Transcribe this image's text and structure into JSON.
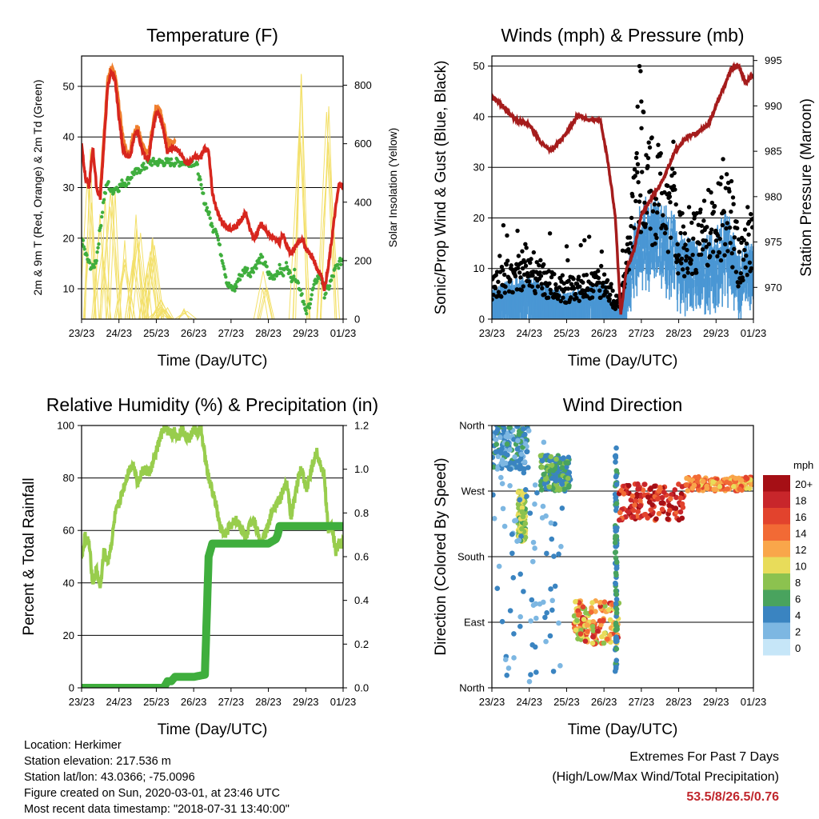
{
  "colors": {
    "temp_2m": "#d7261e",
    "temp_9m": "#f07f2e",
    "dewpoint": "#3fae3d",
    "solar": "#f3e06a",
    "wind": "#4a97d4",
    "gust": "#000000",
    "pressure": "#a51c1c",
    "rh": "#98cd4d",
    "precip": "#3fae3d",
    "extremes_value": "#c0272d"
  },
  "time_ticks": [
    "23/23",
    "24/23",
    "25/23",
    "26/23",
    "27/23",
    "28/23",
    "29/23",
    "01/23"
  ],
  "chart_data": [
    {
      "id": "temperature",
      "type": "line",
      "title": "Temperature (F)",
      "xlabel": "Time (Day/UTC)",
      "ylabel": "2m & 9m T (Red, Orange) & 2m Td (Green)",
      "ylabel_right": "Solar Insolation (Yellow)",
      "xlim": [
        0,
        7
      ],
      "ylim": [
        4,
        56
      ],
      "ylim_right": [
        0,
        900
      ],
      "yticks": [
        10,
        20,
        30,
        40,
        50
      ],
      "yticks_right": [
        0,
        200,
        400,
        600,
        800
      ],
      "grid": "horizontal",
      "series": [
        {
          "color": "temp_2m",
          "style": "line",
          "x": [
            0,
            0.1,
            0.2,
            0.3,
            0.4,
            0.5,
            0.6,
            0.7,
            0.8,
            0.9,
            1.0,
            1.1,
            1.2,
            1.3,
            1.4,
            1.5,
            1.6,
            1.7,
            1.8,
            1.9,
            2.0,
            2.1,
            2.2,
            2.3,
            2.4,
            2.5,
            2.6,
            2.7,
            2.8,
            2.9,
            3.0,
            3.1,
            3.2,
            3.3,
            3.4,
            3.5,
            3.6,
            3.7,
            3.8,
            3.9,
            4.0,
            4.1,
            4.2,
            4.3,
            4.4,
            4.5,
            4.6,
            4.7,
            4.8,
            4.9,
            5.0,
            5.1,
            5.2,
            5.3,
            5.4,
            5.5,
            5.6,
            5.7,
            5.8,
            5.9,
            6.0,
            6.1,
            6.2,
            6.3,
            6.4,
            6.5,
            6.6,
            6.7,
            6.8,
            6.9,
            7.0
          ],
          "y": [
            39,
            32,
            30,
            38,
            30,
            28,
            39,
            50,
            53,
            51,
            44,
            38,
            36,
            36,
            40,
            41,
            38,
            36,
            36,
            41,
            45,
            44,
            41,
            37,
            38,
            38,
            37,
            36,
            35,
            35,
            36,
            36,
            36,
            38,
            37,
            29,
            26,
            24,
            23,
            22,
            22,
            22,
            23,
            24,
            25,
            22,
            20,
            21,
            23,
            22,
            21,
            20,
            20,
            19,
            21,
            18,
            17,
            18,
            19,
            20,
            18,
            17,
            16,
            14,
            13,
            10,
            14,
            20,
            26,
            31,
            30
          ]
        },
        {
          "color": "temp_9m",
          "style": "line",
          "x": [
            0.5,
            0.6,
            0.7,
            0.8,
            0.9,
            1.0,
            1.1,
            1.2,
            1.3,
            1.4,
            1.5,
            1.6,
            1.7,
            1.8,
            1.9,
            2.0,
            2.1,
            2.2,
            2.3,
            2.4,
            2.5
          ],
          "y": [
            29,
            40,
            51,
            54,
            52,
            46,
            40,
            37,
            37,
            41,
            42,
            39,
            37,
            37,
            42,
            46,
            45,
            42,
            38,
            39,
            39
          ]
        },
        {
          "color": "dewpoint",
          "style": "dots",
          "x": [
            0,
            0.1,
            0.2,
            0.3,
            0.4,
            0.5,
            0.6,
            0.7,
            0.8,
            0.9,
            1.0,
            1.1,
            1.2,
            1.3,
            1.4,
            1.5,
            1.6,
            1.7,
            1.8,
            1.9,
            2.0,
            2.1,
            2.2,
            2.3,
            2.4,
            2.5,
            2.6,
            2.7,
            2.8,
            2.9,
            3.0,
            3.1,
            3.2,
            3.3,
            3.4,
            3.5,
            3.6,
            3.7,
            3.8,
            3.9,
            4.0,
            4.1,
            4.2,
            4.3,
            4.4,
            4.5,
            4.6,
            4.7,
            4.8,
            4.9,
            5.0,
            5.1,
            5.2,
            5.3,
            5.4,
            5.5,
            5.6,
            5.7,
            5.8,
            5.9,
            6.0,
            6.1,
            6.2,
            6.3,
            6.4,
            6.5,
            6.6,
            6.7,
            6.8,
            6.9,
            7.0
          ],
          "y": [
            20,
            17,
            15,
            14,
            16,
            22,
            28,
            31,
            29,
            30,
            30,
            31,
            31,
            32,
            33,
            33,
            34,
            34,
            35,
            35,
            35,
            35,
            35,
            35,
            35,
            35,
            35,
            35,
            35,
            35,
            35,
            34,
            30,
            27,
            25,
            22,
            22,
            18,
            15,
            11,
            10,
            10,
            12,
            13,
            14,
            13,
            14,
            15,
            16,
            15,
            13,
            12,
            13,
            14,
            13,
            15,
            12,
            13,
            11,
            9,
            5,
            7,
            10,
            12,
            13,
            9,
            10,
            12,
            14,
            15,
            16
          ]
        },
        {
          "color": "solar",
          "style": "spikes",
          "axis": "right",
          "peaks": [
            [
              0.22,
              620
            ],
            [
              0.55,
              430
            ],
            [
              0.82,
              600
            ],
            [
              1.2,
              280
            ],
            [
              1.45,
              370
            ],
            [
              1.52,
              410
            ],
            [
              1.78,
              240
            ],
            [
              1.87,
              400
            ],
            [
              2.12,
              50
            ],
            [
              2.18,
              70
            ],
            [
              2.25,
              60
            ],
            [
              2.75,
              40
            ],
            [
              4.9,
              200
            ],
            [
              5.85,
              880
            ],
            [
              6.55,
              740
            ]
          ]
        }
      ]
    },
    {
      "id": "winds_pressure",
      "type": "scatter",
      "title": "Winds (mph) & Pressure (mb)",
      "xlabel": "Time (Day/UTC)",
      "ylabel": "Sonic/Prop Wind & Gust (Blue, Black)",
      "ylabel_right": "Station Pressure (Maroon)",
      "xlim": [
        0,
        7
      ],
      "ylim": [
        0,
        52
      ],
      "ylim_right": [
        966.5,
        995.5
      ],
      "yticks": [
        0,
        10,
        20,
        30,
        40,
        50
      ],
      "yticks_right": [
        970,
        975,
        980,
        985,
        990,
        995
      ],
      "grid": "horizontal",
      "wind_envelope": {
        "x": [
          0,
          0.5,
          1,
          1.5,
          2,
          2.5,
          3,
          3.3,
          3.5,
          3.8,
          4,
          4.3,
          4.6,
          4.9,
          5,
          5.5,
          6,
          6.3,
          6.6,
          6.9,
          7
        ],
        "y": [
          5,
          6,
          7,
          5,
          4,
          5,
          6,
          2,
          3,
          15,
          18,
          20,
          18,
          16,
          13,
          12,
          14,
          17,
          10,
          12,
          12
        ]
      },
      "gust_envelope": {
        "x": [
          0,
          0.5,
          1,
          1.5,
          2,
          2.5,
          3,
          3.3,
          3.5,
          3.8,
          4,
          4.3,
          4.6,
          4.9,
          5,
          5.5,
          6,
          6.3,
          6.6,
          6.9,
          7
        ],
        "y": [
          8,
          10,
          13,
          8,
          7,
          8,
          9,
          4,
          6,
          25,
          35,
          32,
          28,
          24,
          18,
          19,
          24,
          28,
          14,
          20,
          16
        ]
      },
      "pressure": {
        "x": [
          0,
          0.3,
          0.6,
          1,
          1.3,
          1.6,
          2,
          2.3,
          2.6,
          2.9,
          3.1,
          3.3,
          3.45,
          3.6,
          3.8,
          4,
          4.3,
          4.6,
          4.9,
          5.2,
          5.5,
          5.8,
          6.1,
          6.4,
          6.6,
          6.8,
          6.9,
          7
        ],
        "y": [
          991,
          990,
          988.5,
          988,
          986,
          985,
          987,
          989,
          988.5,
          988.5,
          984,
          978,
          967,
          972,
          974,
          978,
          980,
          982,
          985,
          986.5,
          987,
          988,
          991,
          994,
          994.5,
          992.5,
          993,
          993.5
        ]
      }
    },
    {
      "id": "rh_precip",
      "type": "line",
      "title": "Relative Humidity (%) & Precipitation (in)",
      "xlabel": "Time (Day/UTC)",
      "ylabel": "Percent & Total Rainfall",
      "xlim": [
        0,
        7
      ],
      "ylim": [
        0,
        100
      ],
      "ylim_right": [
        0,
        1.2
      ],
      "yticks": [
        0,
        20,
        40,
        60,
        80,
        100
      ],
      "yticks_right": [
        0.0,
        0.2,
        0.4,
        0.6,
        0.8,
        1.0,
        1.2
      ],
      "grid": "horizontal",
      "series": [
        {
          "color": "rh",
          "style": "line",
          "x": [
            0,
            0.1,
            0.2,
            0.3,
            0.4,
            0.5,
            0.6,
            0.7,
            0.8,
            0.9,
            1.0,
            1.1,
            1.2,
            1.3,
            1.4,
            1.5,
            1.6,
            1.7,
            1.8,
            1.9,
            2.0,
            2.1,
            2.2,
            2.3,
            2.4,
            2.5,
            2.6,
            2.7,
            2.8,
            2.9,
            3.0,
            3.1,
            3.2,
            3.3,
            3.4,
            3.5,
            3.6,
            3.7,
            3.8,
            3.9,
            4.0,
            4.1,
            4.2,
            4.3,
            4.4,
            4.5,
            4.6,
            4.7,
            4.8,
            4.9,
            5.0,
            5.1,
            5.2,
            5.3,
            5.4,
            5.5,
            5.6,
            5.7,
            5.8,
            5.9,
            6.0,
            6.1,
            6.2,
            6.3,
            6.4,
            6.5,
            6.6,
            6.7,
            6.8,
            6.9,
            7.0
          ],
          "y": [
            50,
            58,
            55,
            40,
            45,
            38,
            52,
            48,
            55,
            66,
            70,
            75,
            80,
            84,
            85,
            78,
            82,
            83,
            82,
            85,
            90,
            95,
            99,
            98,
            97,
            97,
            96,
            99,
            96,
            95,
            99,
            97,
            99,
            88,
            80,
            75,
            70,
            62,
            58,
            60,
            62,
            64,
            63,
            60,
            58,
            62,
            65,
            60,
            55,
            58,
            62,
            68,
            70,
            72,
            75,
            78,
            65,
            72,
            80,
            85,
            75,
            80,
            86,
            90,
            85,
            80,
            60,
            62,
            52,
            55,
            55
          ]
        },
        {
          "color": "precip",
          "style": "thick",
          "axis": "right",
          "x": [
            0,
            2.2,
            2.3,
            2.4,
            2.5,
            3.0,
            3.3,
            3.4,
            3.5,
            3.8,
            4.0,
            4.5,
            5.0,
            5.2,
            5.25,
            5.3,
            6.0,
            6.5,
            7.0
          ],
          "y": [
            0,
            0,
            0.03,
            0.03,
            0.05,
            0.05,
            0.06,
            0.6,
            0.66,
            0.66,
            0.66,
            0.66,
            0.66,
            0.68,
            0.7,
            0.74,
            0.74,
            0.74,
            0.74
          ]
        }
      ]
    },
    {
      "id": "wind_direction",
      "type": "scatter",
      "title": "Wind Direction",
      "xlabel": "Time (Day/UTC)",
      "ylabel": "Direction (Colored By Speed)",
      "xlim": [
        0,
        7
      ],
      "ylim": [
        0,
        360
      ],
      "ytick_labels": [
        "North",
        "East",
        "South",
        "West",
        "North"
      ],
      "ytick_values": [
        0,
        90,
        180,
        270,
        360
      ],
      "grid": "horizontal",
      "legend_title": "mph",
      "legend_labels": [
        "20+",
        "18",
        "16",
        "14",
        "12",
        "10",
        "8",
        "6",
        "4",
        "2",
        "0"
      ],
      "legend_colors": [
        "#a50f15",
        "#c8262b",
        "#e2432d",
        "#f26a35",
        "#f9a64a",
        "#e8dc5a",
        "#8cc24f",
        "#49a35e",
        "#3a84c1",
        "#7db7e2",
        "#c6e6f8"
      ],
      "clusters": [
        {
          "x": [
            0.0,
            1.0
          ],
          "y": [
            300,
            360
          ],
          "speed": [
            2,
            6
          ]
        },
        {
          "x": [
            0.7,
            0.9
          ],
          "y": [
            200,
            270
          ],
          "speed": [
            6,
            11
          ]
        },
        {
          "x": [
            0.0,
            1.9
          ],
          "y": [
            0,
            360
          ],
          "speed": [
            1,
            5
          ],
          "sparse": true
        },
        {
          "x": [
            1.3,
            2.1
          ],
          "y": [
            270,
            320
          ],
          "speed": [
            3,
            8
          ]
        },
        {
          "x": [
            2.2,
            3.4
          ],
          "y": [
            60,
            120
          ],
          "speed": [
            8,
            18
          ]
        },
        {
          "x": [
            3.3,
            3.35
          ],
          "y": [
            20,
            330
          ],
          "speed": [
            3,
            6
          ],
          "sparse": true
        },
        {
          "x": [
            3.4,
            5.2
          ],
          "y": [
            230,
            280
          ],
          "speed": [
            14,
            22
          ]
        },
        {
          "x": [
            5.2,
            7.0
          ],
          "y": [
            270,
            290
          ],
          "speed": [
            10,
            16
          ]
        }
      ]
    }
  ],
  "info": {
    "location": "Location: Herkimer",
    "elevation": "Station elevation: 217.536 m",
    "latlon": "Station lat/lon: 43.0366; -75.0096",
    "created": "Figure created on Sun, 2020-03-01, at 23:46 UTC",
    "recent": "Most recent data timestamp: \"2018-07-31 13:40:00\""
  },
  "extremes": {
    "title": "Extremes For Past 7 Days",
    "subtitle": "(High/Low/Max Wind/Total Precipitation)",
    "values": "53.5/8/26.5/0.76"
  }
}
